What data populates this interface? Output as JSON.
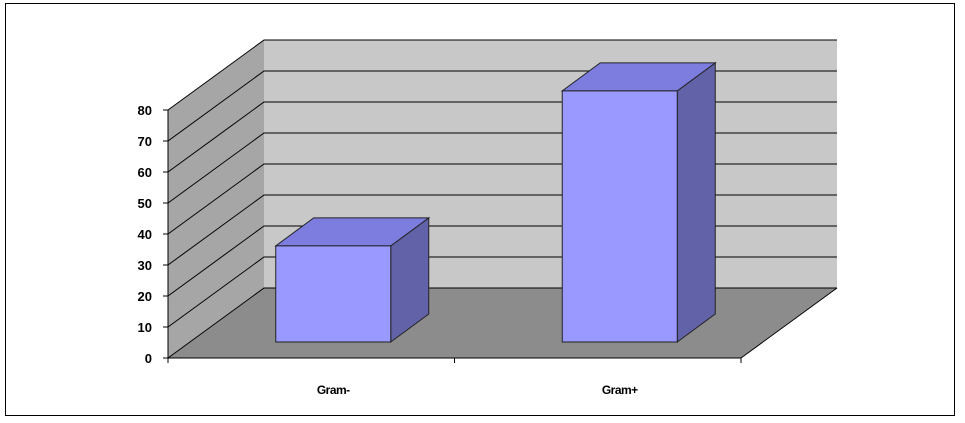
{
  "chart_data": {
    "type": "bar",
    "style": "3d-column",
    "title": "",
    "xlabel": "",
    "ylabel": "",
    "categories": [
      "Gram-",
      "Gram+"
    ],
    "values": [
      31,
      81
    ],
    "ylim": [
      0,
      80
    ],
    "yticks": [
      0,
      10,
      20,
      30,
      40,
      50,
      60,
      70,
      80
    ],
    "grid": true,
    "legend": "none",
    "colors": {
      "bar_front": "#9999ff",
      "bar_top": "#7d7de0",
      "bar_side": "#6262a8",
      "back_wall": "#c8c8c8",
      "side_wall": "#a6a6a6",
      "floor": "#8c8c8c",
      "gridline": "#000000"
    }
  }
}
